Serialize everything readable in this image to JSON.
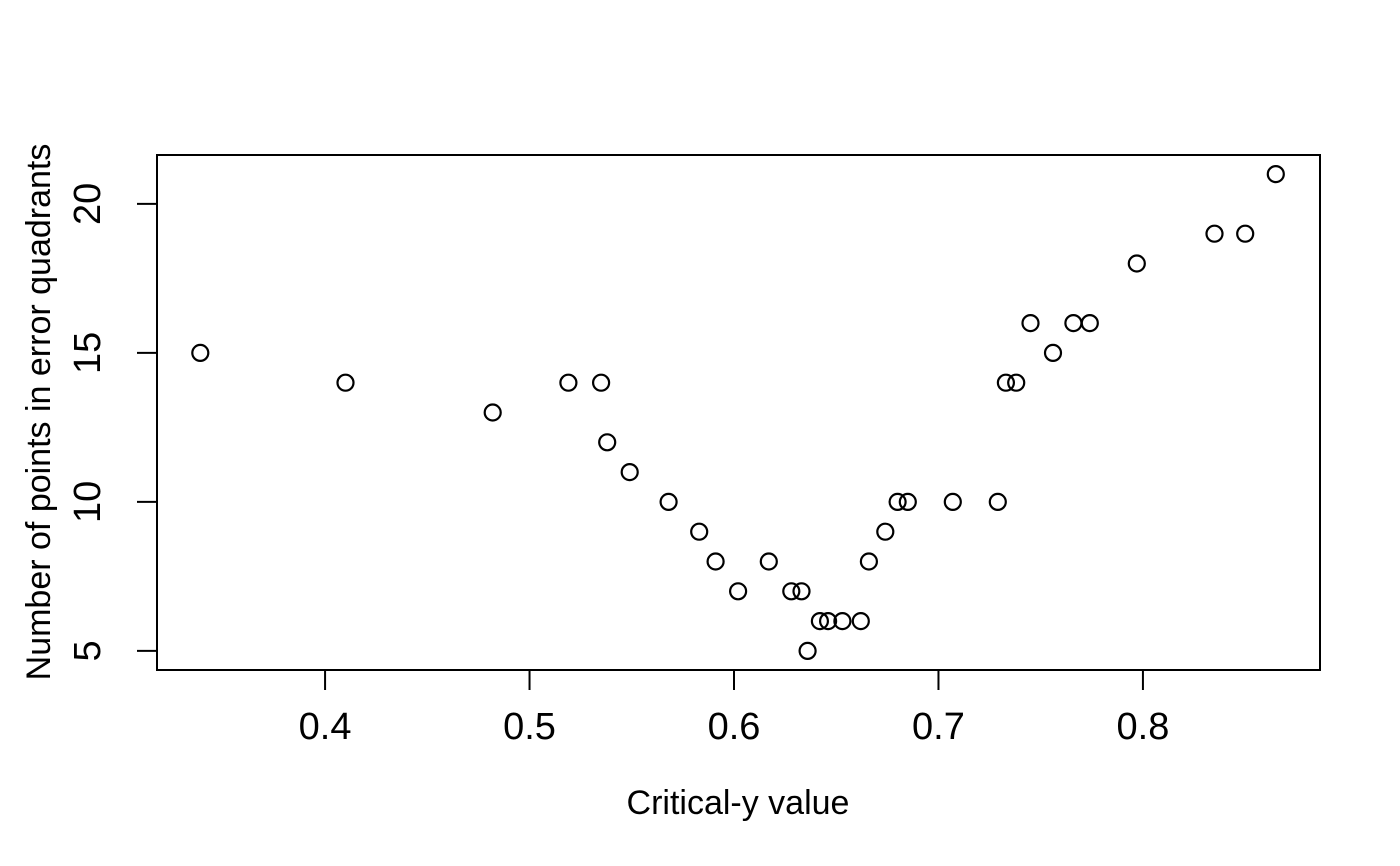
{
  "figure": {
    "background_color": "#ffffff",
    "foreground_color": "#000000"
  },
  "chart_data": {
    "type": "scatter",
    "title": "",
    "xlabel": "Critical-y value",
    "ylabel": "Number of points in error quadrants",
    "xlim": [
      0.3178,
      0.8866
    ],
    "ylim": [
      4.36,
      21.64
    ],
    "x_ticks": [
      0.4,
      0.5,
      0.6,
      0.7,
      0.8
    ],
    "x_tick_labels": [
      "0.4",
      "0.5",
      "0.6",
      "0.7",
      "0.8"
    ],
    "y_ticks": [
      5,
      10,
      15,
      20
    ],
    "y_tick_labels": [
      "5",
      "10",
      "15",
      "20"
    ],
    "grid": false,
    "legend": null,
    "marker": "open-circle",
    "points": [
      [
        0.339,
        15
      ],
      [
        0.41,
        14
      ],
      [
        0.482,
        13
      ],
      [
        0.519,
        14
      ],
      [
        0.535,
        14
      ],
      [
        0.538,
        12
      ],
      [
        0.549,
        11
      ],
      [
        0.568,
        10
      ],
      [
        0.583,
        9
      ],
      [
        0.591,
        8
      ],
      [
        0.602,
        7
      ],
      [
        0.617,
        8
      ],
      [
        0.628,
        7
      ],
      [
        0.633,
        7
      ],
      [
        0.636,
        5
      ],
      [
        0.642,
        6
      ],
      [
        0.646,
        6
      ],
      [
        0.653,
        6
      ],
      [
        0.662,
        6
      ],
      [
        0.666,
        8
      ],
      [
        0.674,
        9
      ],
      [
        0.68,
        10
      ],
      [
        0.685,
        10
      ],
      [
        0.707,
        10
      ],
      [
        0.729,
        10
      ],
      [
        0.733,
        14
      ],
      [
        0.738,
        14
      ],
      [
        0.745,
        16
      ],
      [
        0.756,
        15
      ],
      [
        0.766,
        16
      ],
      [
        0.774,
        16
      ],
      [
        0.797,
        18
      ],
      [
        0.835,
        19
      ],
      [
        0.85,
        19
      ],
      [
        0.865,
        21
      ]
    ]
  }
}
